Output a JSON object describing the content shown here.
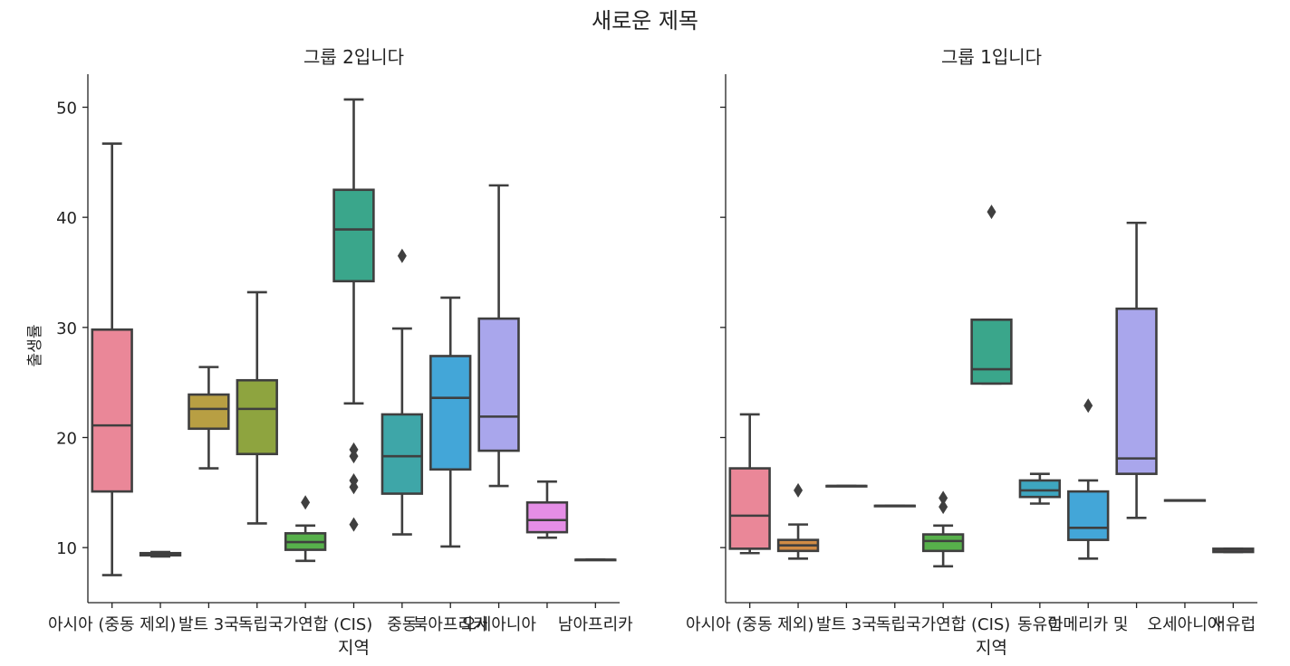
{
  "chart_data": {
    "type": "box",
    "title": "새로운 제목",
    "ylabel": "출생률",
    "ylim": [
      5,
      53
    ],
    "yticks": [
      10,
      20,
      30,
      40,
      50
    ],
    "shared_y": true,
    "grid": false,
    "panels": [
      {
        "title": "그룹 2입니다",
        "xlabel": "지역",
        "categories": [
          "아시아 (중동 제외)",
          "발트 3국",
          "독립국가연합 (CIS)",
          "중동",
          "북아프리카",
          "오세아니아",
          "남아프리카"
        ],
        "boxes": [
          {
            "label": "아시아 (중동 제외)",
            "whislo": 7.5,
            "q1": 15.1,
            "med": 21.1,
            "q3": 29.8,
            "whishi": 46.7,
            "fliers": [],
            "color": "#ea8798"
          },
          {
            "label": "",
            "whislo": 9.2,
            "q1": 9.3,
            "med": 9.4,
            "q3": 9.5,
            "whishi": 9.6,
            "fliers": [],
            "color": "#cb8a5a"
          },
          {
            "label": "발트 3국",
            "whislo": 17.2,
            "q1": 20.8,
            "med": 22.6,
            "q3": 23.9,
            "whishi": 26.4,
            "fliers": [],
            "color": "#b89f43"
          },
          {
            "label": "",
            "whislo": 12.2,
            "q1": 18.5,
            "med": 22.6,
            "q3": 25.2,
            "whishi": 33.2,
            "fliers": [],
            "color": "#8ea43f"
          },
          {
            "label": "독립국가연합 (CIS)",
            "whislo": 8.8,
            "q1": 9.8,
            "med": 10.5,
            "q3": 11.3,
            "whishi": 12.0,
            "fliers": [
              14.1
            ],
            "color": "#57b04b"
          },
          {
            "label": "",
            "whislo": 23.1,
            "q1": 34.2,
            "med": 38.9,
            "q3": 42.5,
            "whishi": 50.7,
            "fliers": [
              18.3,
              18.9,
              15.5,
              16.1,
              12.1
            ],
            "color": "#3aa68b"
          },
          {
            "label": "중동",
            "whislo": 11.2,
            "q1": 14.9,
            "med": 18.3,
            "q3": 22.1,
            "whishi": 29.9,
            "fliers": [
              36.5
            ],
            "color": "#3ea6a8"
          },
          {
            "label": "북아프리카",
            "whislo": 10.1,
            "q1": 17.1,
            "med": 23.6,
            "q3": 27.4,
            "whishi": 32.7,
            "fliers": [],
            "color": "#43a6d8"
          },
          {
            "label": "오세아니아",
            "whislo": 15.6,
            "q1": 18.8,
            "med": 21.9,
            "q3": 30.8,
            "whishi": 42.9,
            "fliers": [],
            "color": "#a9a6ec"
          },
          {
            "label": "",
            "whislo": 10.9,
            "q1": 11.4,
            "med": 12.5,
            "q3": 14.1,
            "whishi": 16.0,
            "fliers": [],
            "color": "#e58ee6"
          },
          {
            "label": "남아프리카",
            "whislo": 8.9,
            "q1": 8.9,
            "med": 8.9,
            "q3": 8.9,
            "whishi": 8.9,
            "fliers": [],
            "color": "#e890c4"
          }
        ]
      },
      {
        "title": "그룹 1입니다",
        "xlabel": "지역",
        "categories": [
          "아시아 (중동 제외)",
          "발트 3국",
          "독립국가연합 (CIS)",
          "동유럽",
          "아메리카 및",
          "오세아니아",
          "서유럽"
        ],
        "boxes": [
          {
            "label": "아시아 (중동 제외)",
            "whislo": 9.5,
            "q1": 9.9,
            "med": 12.9,
            "q3": 17.2,
            "whishi": 22.1,
            "fliers": [],
            "color": "#ea8798"
          },
          {
            "label": "",
            "whislo": 9.0,
            "q1": 9.7,
            "med": 10.2,
            "q3": 10.7,
            "whishi": 12.1,
            "fliers": [
              15.2
            ],
            "color": "#d08b45"
          },
          {
            "label": "발트 3국",
            "whislo": 15.6,
            "q1": 15.6,
            "med": 15.6,
            "q3": 15.6,
            "whishi": 15.6,
            "fliers": [],
            "color": "#b89f43"
          },
          {
            "label": "",
            "whislo": 13.8,
            "q1": 13.8,
            "med": 13.8,
            "q3": 13.8,
            "whishi": 13.8,
            "fliers": [],
            "color": "#8ea43f"
          },
          {
            "label": "독립국가연합 (CIS)",
            "whislo": 8.3,
            "q1": 9.7,
            "med": 10.6,
            "q3": 11.2,
            "whishi": 12.0,
            "fliers": [
              13.7,
              14.5
            ],
            "color": "#57b04b"
          },
          {
            "label": "",
            "whislo": 24.9,
            "q1": 24.9,
            "med": 26.2,
            "q3": 30.7,
            "whishi": 30.7,
            "fliers": [
              40.5
            ],
            "color": "#3aa68b"
          },
          {
            "label": "동유럽",
            "whislo": 14.0,
            "q1": 14.6,
            "med": 15.2,
            "q3": 16.1,
            "whishi": 16.7,
            "fliers": [],
            "color": "#3ea6c0"
          },
          {
            "label": "아메리카 및",
            "whislo": 9.0,
            "q1": 10.7,
            "med": 11.8,
            "q3": 15.1,
            "whishi": 16.1,
            "fliers": [
              22.9
            ],
            "color": "#43a6d8"
          },
          {
            "label": "",
            "whislo": 12.7,
            "q1": 16.7,
            "med": 18.1,
            "q3": 31.7,
            "whishi": 39.5,
            "fliers": [],
            "color": "#a9a6ec"
          },
          {
            "label": "오세아니아",
            "whislo": 14.3,
            "q1": 14.3,
            "med": 14.3,
            "q3": 14.3,
            "whishi": 14.3,
            "fliers": [],
            "color": "#e58ee6"
          },
          {
            "label": "서유럽",
            "whislo": 9.6,
            "q1": 9.6,
            "med": 9.8,
            "q3": 9.9,
            "whishi": 9.9,
            "fliers": [],
            "color": "#e890c4"
          }
        ]
      }
    ]
  }
}
